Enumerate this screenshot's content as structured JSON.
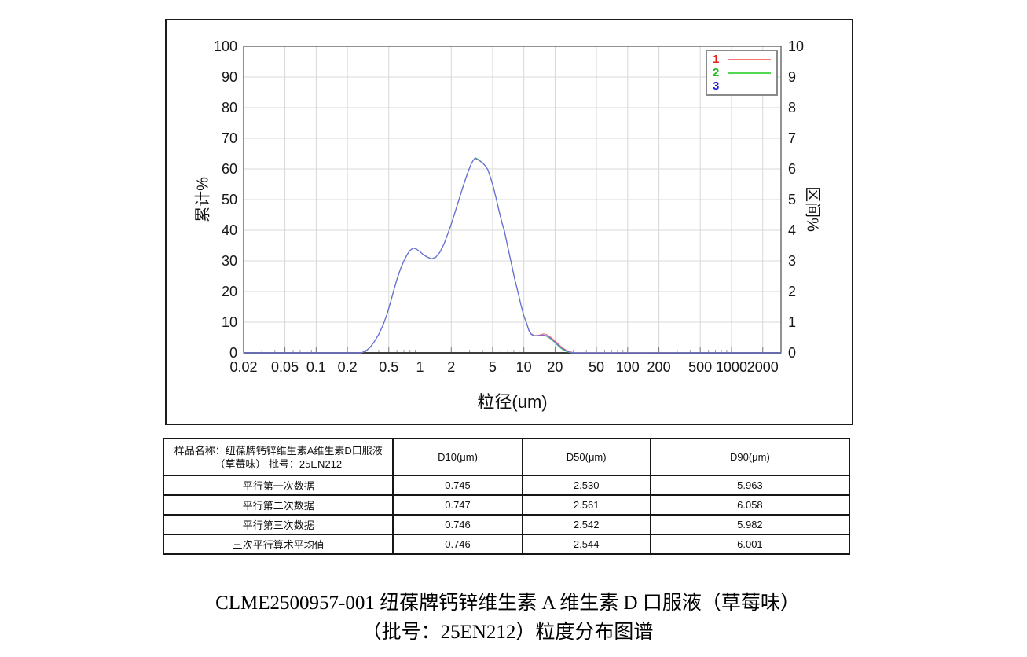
{
  "chart": {
    "y_left_title": "累计%",
    "y_right_title": "区间%",
    "x_title": "粒径(um)"
  },
  "chart_data": {
    "type": "line",
    "x_scale": "log",
    "x_range": [
      0.02,
      3000
    ],
    "x_tick_labels": [
      "0.02",
      "0.05",
      "0.1",
      "0.2",
      "0.5",
      "1",
      "2",
      "5",
      "10",
      "20",
      "50",
      "100",
      "200",
      "500",
      "1000",
      "2000"
    ],
    "y_left": {
      "title": "累计%",
      "min": 0,
      "max": 100,
      "tick_step": 10
    },
    "y_right": {
      "title": "区间%",
      "min": 0,
      "max": 10,
      "tick_step": 1
    },
    "grid": true,
    "legend_position": "top-right",
    "x": [
      0.02,
      0.27,
      0.3,
      0.33,
      0.36,
      0.4,
      0.44,
      0.48,
      0.52,
      0.56,
      0.6,
      0.65,
      0.7,
      0.75,
      0.8,
      0.86,
      0.92,
      1.0,
      1.08,
      1.18,
      1.3,
      1.42,
      1.55,
      1.7,
      1.85,
      2.0,
      2.15,
      2.3,
      2.5,
      2.7,
      2.9,
      3.1,
      3.25,
      3.4,
      3.7,
      4.0,
      4.25,
      4.5,
      4.8,
      5.1,
      5.45,
      5.8,
      6.15,
      6.5,
      6.9,
      7.5,
      8.1,
      8.75,
      9.4,
      10.0,
      10.6,
      11.2,
      11.8,
      12.6,
      13.5,
      14.5,
      15.5,
      16.5,
      17.5,
      18.5,
      20.0,
      21.5,
      23.5,
      25.5,
      27.5,
      29.0,
      30.5,
      3000
    ],
    "series": [
      {
        "name": "1",
        "line_color": "#f37777",
        "label_color": "#e62222",
        "interval_pct": [
          0,
          0,
          0.06,
          0.18,
          0.35,
          0.6,
          0.9,
          1.25,
          1.65,
          2.05,
          2.4,
          2.75,
          3.0,
          3.2,
          3.34,
          3.42,
          3.39,
          3.3,
          3.2,
          3.12,
          3.07,
          3.12,
          3.28,
          3.55,
          3.88,
          4.2,
          4.53,
          4.85,
          5.25,
          5.6,
          5.9,
          6.15,
          6.28,
          6.35,
          6.28,
          6.2,
          6.1,
          5.98,
          5.7,
          5.4,
          5.0,
          4.6,
          4.25,
          3.98,
          3.55,
          3.0,
          2.45,
          2.0,
          1.55,
          1.2,
          0.98,
          0.74,
          0.62,
          0.57,
          0.57,
          0.59,
          0.62,
          0.6,
          0.55,
          0.49,
          0.39,
          0.29,
          0.17,
          0.09,
          0.04,
          0.02,
          0.01,
          0
        ]
      },
      {
        "name": "2",
        "line_color": "#55d955",
        "label_color": "#1fb81f",
        "interval_pct": [
          0,
          0,
          0.06,
          0.18,
          0.35,
          0.6,
          0.9,
          1.25,
          1.65,
          2.05,
          2.4,
          2.75,
          3.0,
          3.2,
          3.34,
          3.42,
          3.39,
          3.3,
          3.2,
          3.12,
          3.07,
          3.12,
          3.28,
          3.55,
          3.88,
          4.2,
          4.53,
          4.85,
          5.25,
          5.6,
          5.9,
          6.15,
          6.28,
          6.37,
          6.3,
          6.2,
          6.1,
          5.98,
          5.7,
          5.4,
          5.0,
          4.6,
          4.25,
          3.98,
          3.55,
          3.0,
          2.45,
          2.0,
          1.55,
          1.2,
          0.98,
          0.72,
          0.6,
          0.56,
          0.56,
          0.57,
          0.57,
          0.54,
          0.49,
          0.43,
          0.33,
          0.22,
          0.11,
          0.05,
          0.02,
          0,
          0,
          0
        ]
      },
      {
        "name": "3",
        "line_color": "#6a6ae8",
        "label_color": "#2222dd",
        "interval_pct": [
          0,
          0,
          0.06,
          0.18,
          0.35,
          0.6,
          0.9,
          1.25,
          1.65,
          2.05,
          2.4,
          2.75,
          3.0,
          3.2,
          3.34,
          3.42,
          3.39,
          3.3,
          3.2,
          3.12,
          3.07,
          3.12,
          3.28,
          3.55,
          3.88,
          4.2,
          4.53,
          4.85,
          5.25,
          5.6,
          5.9,
          6.15,
          6.28,
          6.35,
          6.28,
          6.2,
          6.1,
          5.98,
          5.7,
          5.4,
          5.0,
          4.6,
          4.25,
          3.98,
          3.55,
          3.0,
          2.45,
          2.0,
          1.55,
          1.2,
          0.98,
          0.72,
          0.6,
          0.56,
          0.56,
          0.57,
          0.58,
          0.56,
          0.51,
          0.45,
          0.35,
          0.25,
          0.14,
          0.07,
          0.03,
          0.01,
          0,
          0
        ]
      }
    ]
  },
  "table": {
    "header": {
      "sample_line1": "样品名称：纽葆牌钙锌维生素A维生素D口服液",
      "sample_line2": "（草莓味） 批号：25EN212",
      "columns": [
        "D10(μm)",
        "D50(μm)",
        "D90(μm)"
      ]
    },
    "rows": [
      {
        "label": "平行第一次数据",
        "values": [
          "0.745",
          "2.530",
          "5.963"
        ]
      },
      {
        "label": "平行第二次数据",
        "values": [
          "0.747",
          "2.561",
          "6.058"
        ]
      },
      {
        "label": "平行第三次数据",
        "values": [
          "0.746",
          "2.542",
          "5.982"
        ]
      },
      {
        "label": "三次平行算术平均值",
        "values": [
          "0.746",
          "2.544",
          "6.001"
        ]
      }
    ]
  },
  "caption": {
    "line1": "CLME2500957-001 纽葆牌钙锌维生素 A 维生素 D 口服液（草莓味）",
    "line2": "（批号：25EN212）粒度分布图谱"
  }
}
